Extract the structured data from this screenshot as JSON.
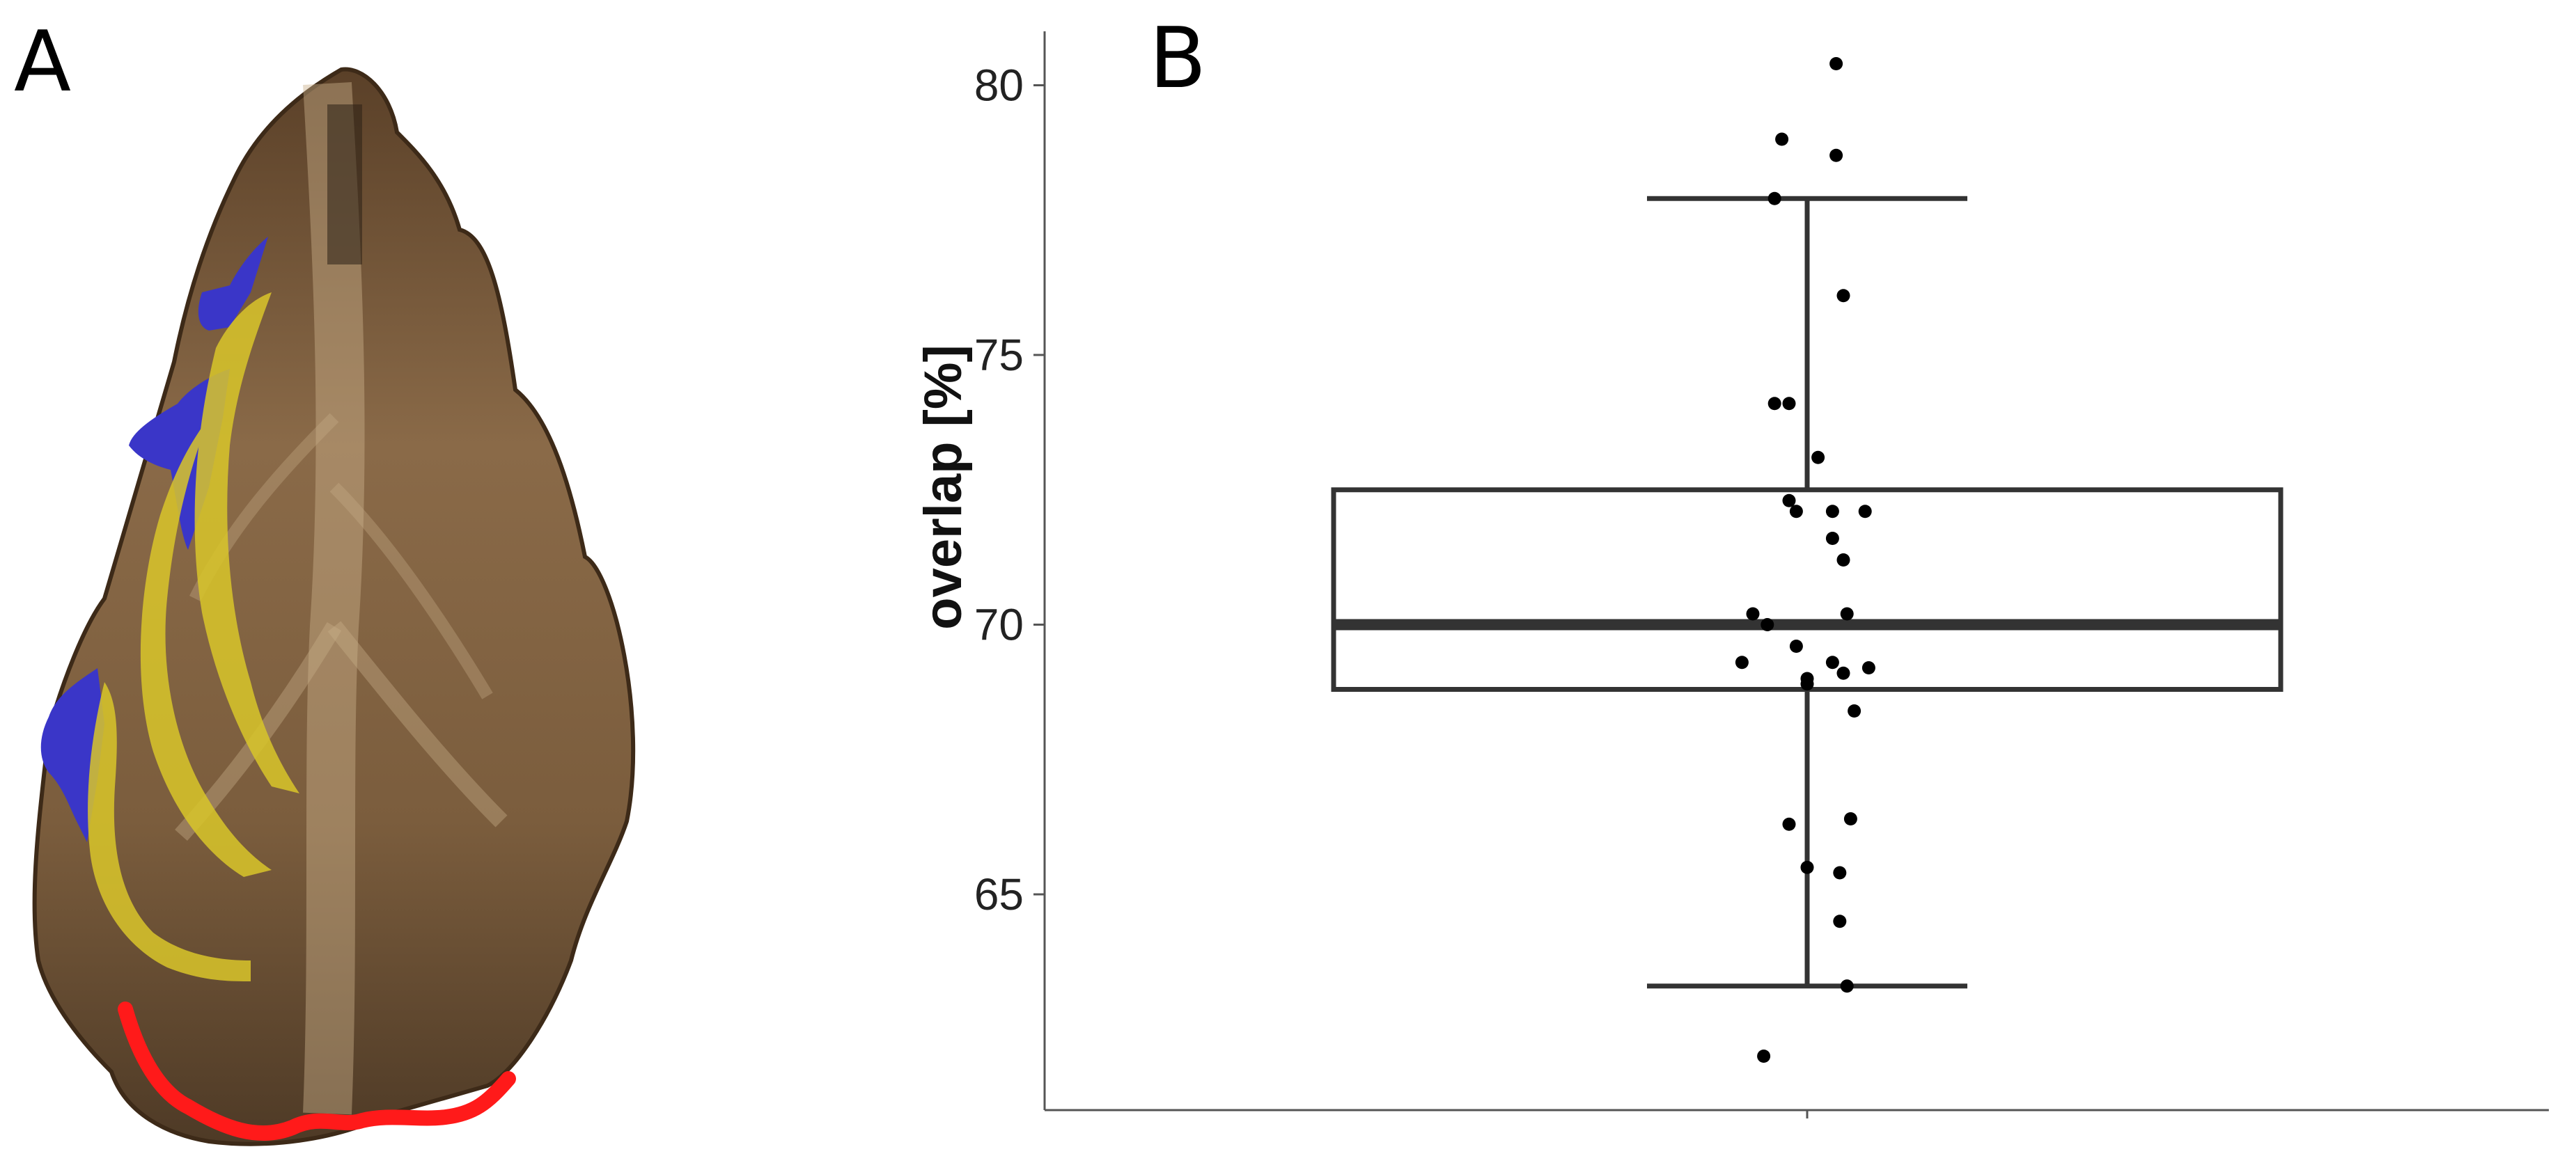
{
  "panels": {
    "a_label": "A",
    "b_label": "B"
  },
  "photo": {
    "colors": {
      "blue": "#3a36c8",
      "yellow": "#d9c62a",
      "red": "#ff1a1a",
      "tissue": "#8b6a45"
    }
  },
  "chart_data": {
    "type": "box",
    "ylabel": "overlap [%]",
    "xlabel": "",
    "ylim": [
      61,
      81
    ],
    "yticks": [
      65,
      70,
      75,
      80
    ],
    "grid": false,
    "box": {
      "q1": 68.8,
      "median": 70.0,
      "q3": 72.5,
      "whisker_low": 63.3,
      "whisker_high": 77.9
    },
    "points": [
      {
        "x": 0.08,
        "y": 80.4
      },
      {
        "x": -0.07,
        "y": 79.0
      },
      {
        "x": 0.08,
        "y": 78.7
      },
      {
        "x": -0.09,
        "y": 77.9
      },
      {
        "x": 0.1,
        "y": 76.1
      },
      {
        "x": -0.09,
        "y": 74.1
      },
      {
        "x": -0.05,
        "y": 74.1
      },
      {
        "x": 0.03,
        "y": 73.1
      },
      {
        "x": -0.05,
        "y": 72.3
      },
      {
        "x": -0.03,
        "y": 72.1
      },
      {
        "x": 0.07,
        "y": 72.1
      },
      {
        "x": 0.16,
        "y": 72.1
      },
      {
        "x": 0.07,
        "y": 71.6
      },
      {
        "x": 0.1,
        "y": 71.2
      },
      {
        "x": 0.11,
        "y": 70.2
      },
      {
        "x": -0.15,
        "y": 70.2
      },
      {
        "x": -0.11,
        "y": 70.0
      },
      {
        "x": -0.03,
        "y": 69.6
      },
      {
        "x": -0.18,
        "y": 69.3
      },
      {
        "x": 0.07,
        "y": 69.3
      },
      {
        "x": 0.17,
        "y": 69.2
      },
      {
        "x": 0.1,
        "y": 69.1
      },
      {
        "x": 0.0,
        "y": 69.0
      },
      {
        "x": 0.0,
        "y": 68.9
      },
      {
        "x": 0.13,
        "y": 68.4
      },
      {
        "x": -0.05,
        "y": 66.3
      },
      {
        "x": 0.12,
        "y": 66.4
      },
      {
        "x": 0.0,
        "y": 65.5
      },
      {
        "x": 0.09,
        "y": 65.4
      },
      {
        "x": 0.09,
        "y": 64.5
      },
      {
        "x": 0.11,
        "y": 63.3
      },
      {
        "x": -0.12,
        "y": 62.0
      }
    ]
  }
}
